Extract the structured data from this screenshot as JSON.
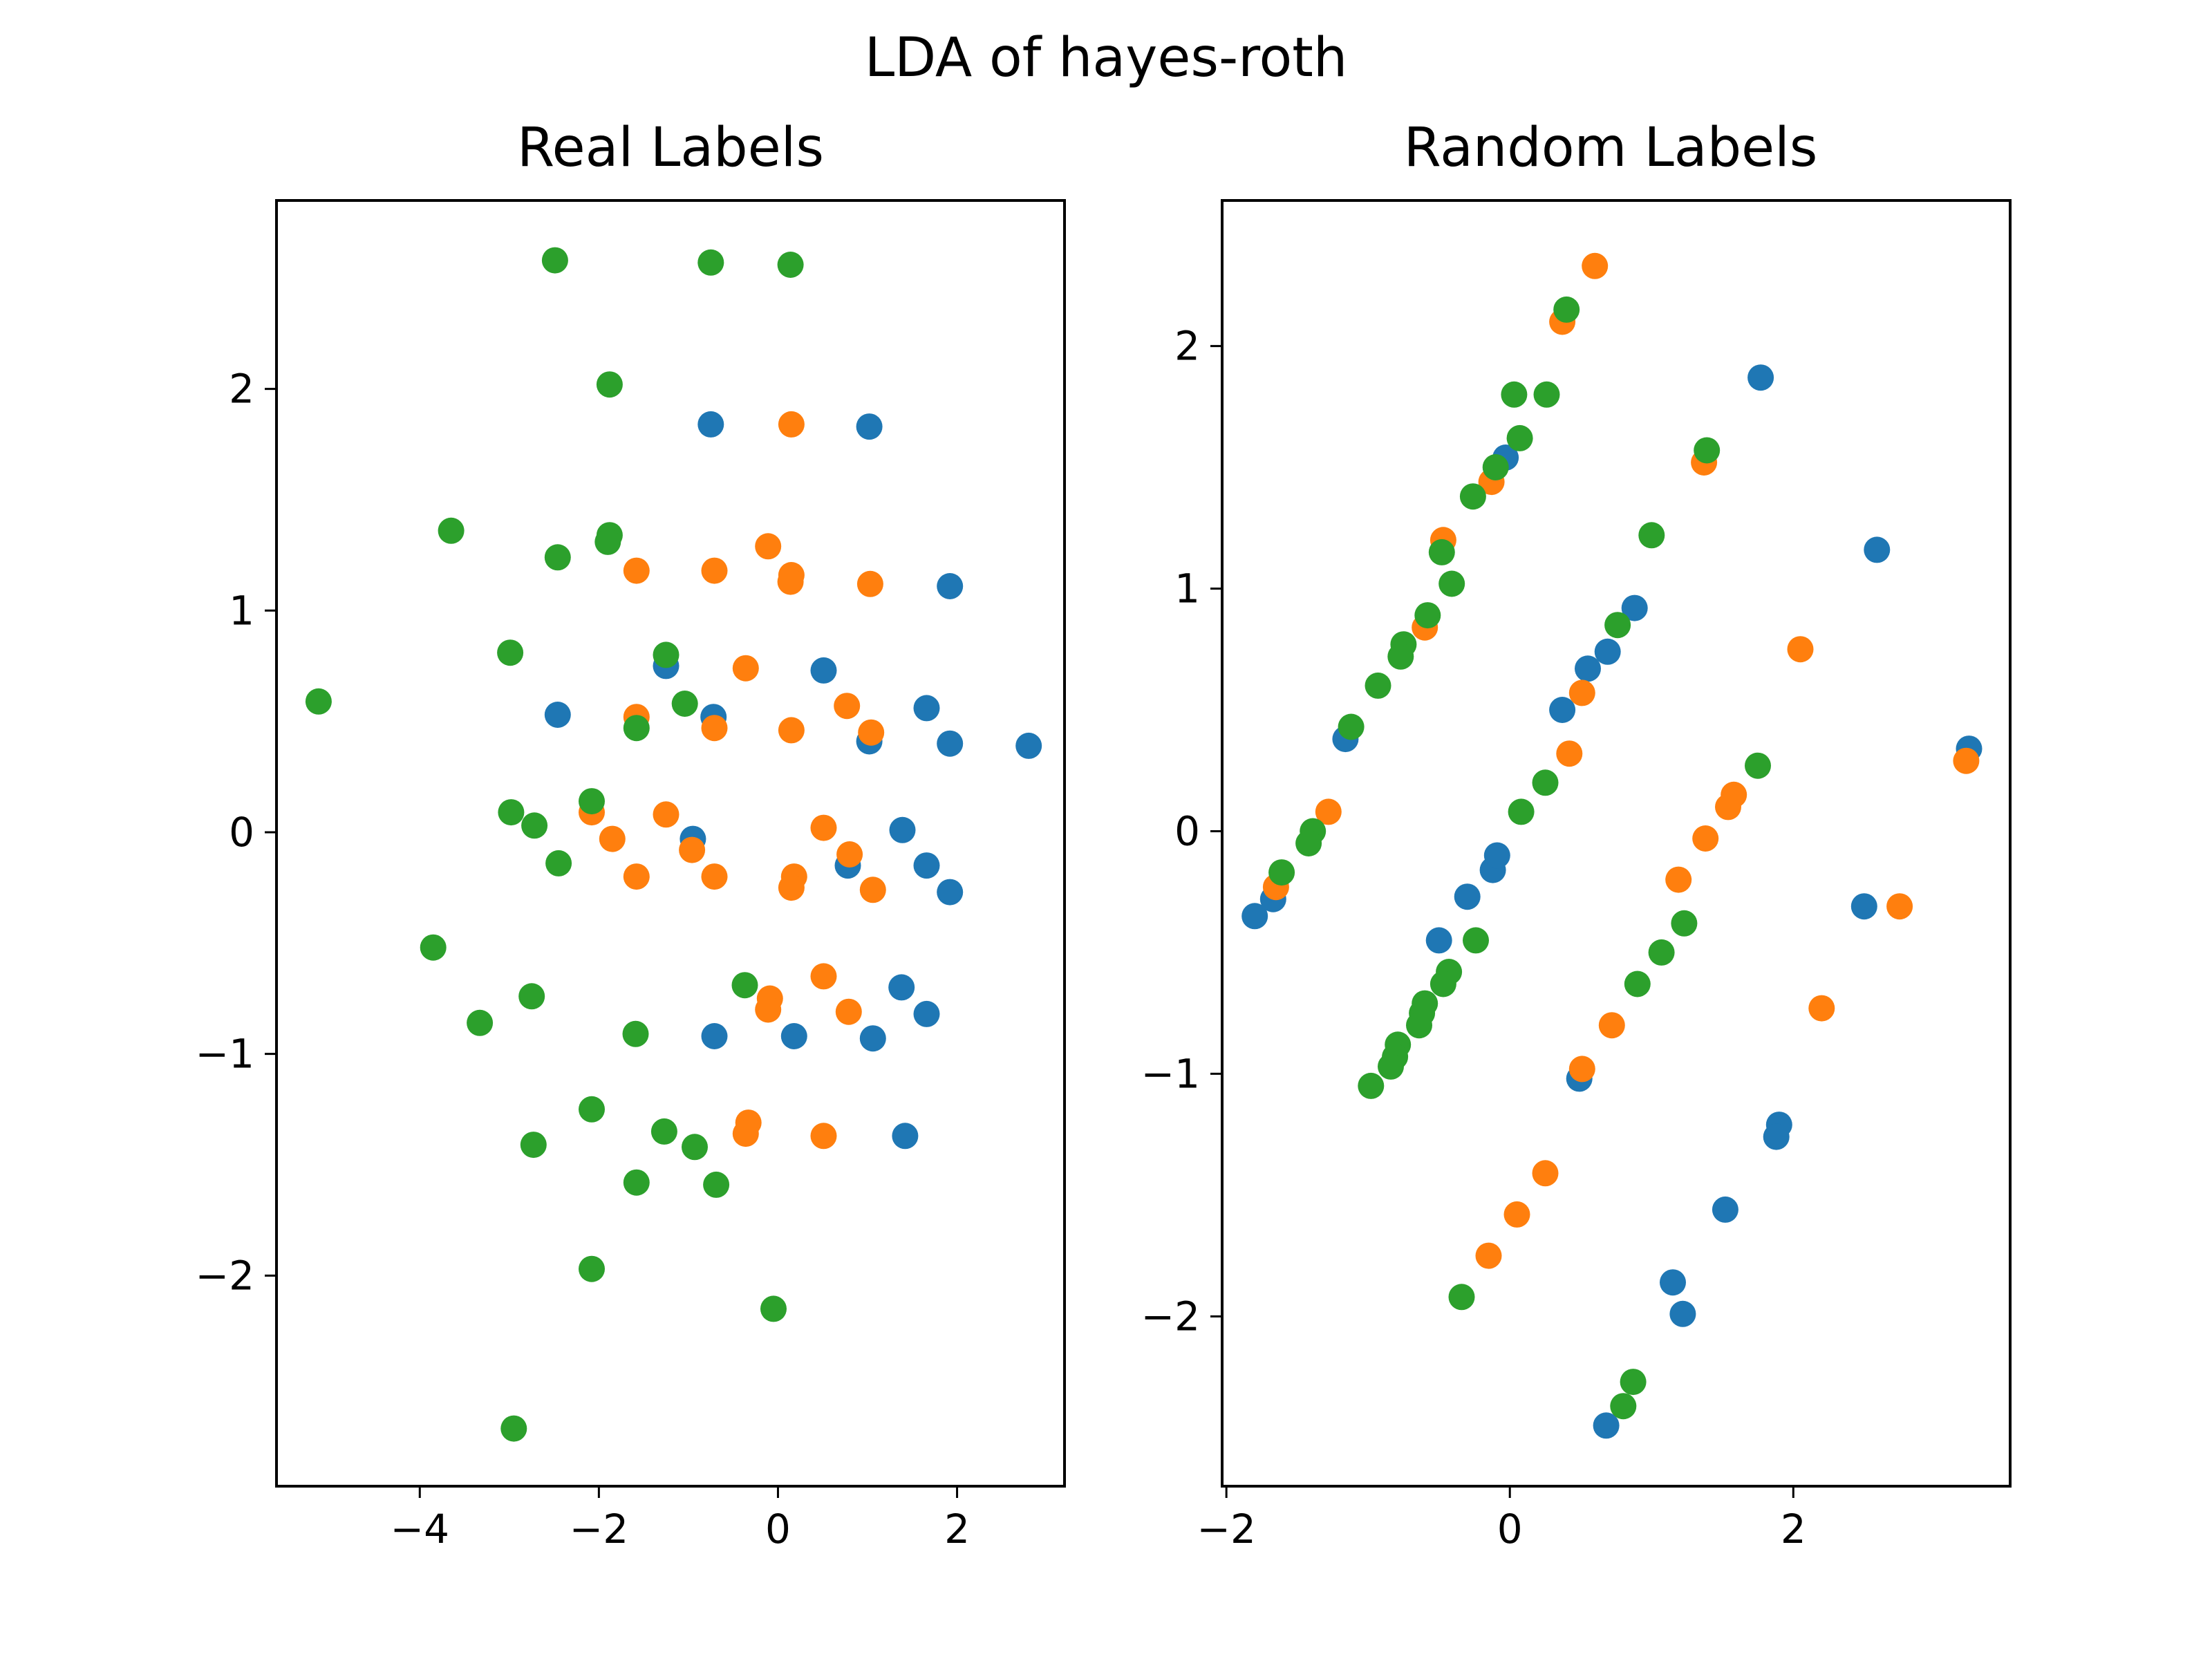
{
  "figure": {
    "suptitle": "LDA of hayes-roth",
    "colors": {
      "class_0": "#1f77b4",
      "class_1": "#ff7f0e",
      "class_2": "#2ca02c"
    }
  },
  "chart_data": [
    {
      "type": "scatter",
      "title": "Real Labels",
      "xlabel": "",
      "ylabel": "",
      "xlim": [
        -5.6,
        3.2
      ],
      "ylim": [
        -2.95,
        2.85
      ],
      "xticks": [
        -4,
        -2,
        0,
        2
      ],
      "yticks": [
        -2,
        -1,
        0,
        1,
        2
      ],
      "xtick_labels": [
        "−4",
        "−2",
        "0",
        "2"
      ],
      "ytick_labels": [
        "−2",
        "−1",
        "0",
        "1",
        "2"
      ],
      "grid": false,
      "series": [
        {
          "color": "#1f77b4",
          "points": [
            [
              -0.75,
              1.84
            ],
            [
              1.02,
              1.83
            ],
            [
              1.92,
              1.11
            ],
            [
              -2.46,
              0.53
            ],
            [
              -1.25,
              0.75
            ],
            [
              0.51,
              0.73
            ],
            [
              1.66,
              0.56
            ],
            [
              -0.72,
              0.52
            ],
            [
              1.02,
              0.41
            ],
            [
              1.92,
              0.4
            ],
            [
              2.8,
              0.39
            ],
            [
              -0.95,
              -0.03
            ],
            [
              1.39,
              0.01
            ],
            [
              0.78,
              -0.15
            ],
            [
              1.66,
              -0.15
            ],
            [
              1.92,
              -0.27
            ],
            [
              1.38,
              -0.7
            ],
            [
              1.66,
              -0.82
            ],
            [
              -0.71,
              -0.92
            ],
            [
              0.18,
              -0.92
            ],
            [
              1.06,
              -0.93
            ],
            [
              1.42,
              -1.37
            ]
          ]
        },
        {
          "color": "#ff7f0e",
          "points": [
            [
              0.15,
              1.84
            ],
            [
              -1.58,
              1.18
            ],
            [
              -0.71,
              1.18
            ],
            [
              -0.11,
              1.29
            ],
            [
              0.15,
              1.16
            ],
            [
              0.14,
              1.13
            ],
            [
              1.03,
              1.12
            ],
            [
              -0.36,
              0.74
            ],
            [
              -1.58,
              0.52
            ],
            [
              -0.71,
              0.47
            ],
            [
              0.15,
              0.46
            ],
            [
              0.77,
              0.57
            ],
            [
              1.04,
              0.45
            ],
            [
              -2.08,
              0.09
            ],
            [
              -1.25,
              0.08
            ],
            [
              -1.85,
              -0.03
            ],
            [
              -0.96,
              -0.08
            ],
            [
              0.51,
              0.02
            ],
            [
              -1.58,
              -0.2
            ],
            [
              -0.71,
              -0.2
            ],
            [
              0.18,
              -0.2
            ],
            [
              0.15,
              -0.25
            ],
            [
              0.8,
              -0.1
            ],
            [
              1.06,
              -0.26
            ],
            [
              0.51,
              -0.65
            ],
            [
              -0.09,
              -0.75
            ],
            [
              -0.11,
              -0.8
            ],
            [
              0.79,
              -0.81
            ],
            [
              -0.33,
              -1.31
            ],
            [
              -0.36,
              -1.36
            ],
            [
              0.51,
              -1.37
            ]
          ]
        },
        {
          "color": "#2ca02c",
          "points": [
            [
              -2.49,
              2.58
            ],
            [
              -0.75,
              2.57
            ],
            [
              0.14,
              2.56
            ],
            [
              -1.88,
              2.02
            ],
            [
              -3.65,
              1.36
            ],
            [
              -1.88,
              1.34
            ],
            [
              -1.9,
              1.31
            ],
            [
              -2.46,
              1.24
            ],
            [
              -2.99,
              0.81
            ],
            [
              -1.25,
              0.8
            ],
            [
              -5.13,
              0.59
            ],
            [
              -1.04,
              0.58
            ],
            [
              -1.58,
              0.47
            ],
            [
              -2.08,
              0.14
            ],
            [
              -2.98,
              0.09
            ],
            [
              -2.72,
              0.03
            ],
            [
              -2.45,
              -0.14
            ],
            [
              -3.85,
              -0.52
            ],
            [
              -0.37,
              -0.69
            ],
            [
              -2.75,
              -0.74
            ],
            [
              -3.33,
              -0.86
            ],
            [
              -1.59,
              -0.91
            ],
            [
              -2.08,
              -1.25
            ],
            [
              -1.27,
              -1.35
            ],
            [
              -0.93,
              -1.42
            ],
            [
              -2.73,
              -1.41
            ],
            [
              -1.58,
              -1.58
            ],
            [
              -0.69,
              -1.59
            ],
            [
              -2.08,
              -1.97
            ],
            [
              -0.05,
              -2.15
            ],
            [
              -2.95,
              -2.69
            ]
          ]
        }
      ]
    },
    {
      "type": "scatter",
      "title": "Random Labels",
      "xlabel": "",
      "ylabel": "",
      "xlim": [
        -2.03,
        3.53
      ],
      "ylim": [
        -2.7,
        2.6
      ],
      "xticks": [
        -2,
        0,
        2
      ],
      "yticks": [
        -2,
        -1,
        0,
        1,
        2
      ],
      "xtick_labels": [
        "−2",
        "0",
        "2"
      ],
      "ytick_labels": [
        "−2",
        "−1",
        "0",
        "1",
        "2"
      ],
      "grid": false,
      "series": [
        {
          "color": "#1f77b4",
          "points": [
            [
              -1.8,
              -0.35
            ],
            [
              -1.67,
              -0.28
            ],
            [
              -1.16,
              0.38
            ],
            [
              -0.03,
              1.54
            ],
            [
              0.37,
              0.5
            ],
            [
              0.55,
              0.67
            ],
            [
              0.69,
              0.74
            ],
            [
              0.88,
              0.92
            ],
            [
              1.77,
              1.87
            ],
            [
              2.59,
              1.16
            ],
            [
              3.24,
              0.34
            ],
            [
              2.5,
              -0.31
            ],
            [
              -0.5,
              -0.45
            ],
            [
              -0.3,
              -0.27
            ],
            [
              -0.12,
              -0.16
            ],
            [
              -0.09,
              -0.1
            ],
            [
              0.49,
              -1.02
            ],
            [
              1.9,
              -1.21
            ],
            [
              1.88,
              -1.26
            ],
            [
              1.52,
              -1.56
            ],
            [
              1.15,
              -1.86
            ],
            [
              1.22,
              -1.99
            ],
            [
              0.68,
              -2.45
            ]
          ]
        },
        {
          "color": "#ff7f0e",
          "points": [
            [
              0.6,
              2.33
            ],
            [
              0.37,
              2.1
            ],
            [
              -0.13,
              1.44
            ],
            [
              -0.47,
              1.2
            ],
            [
              -0.6,
              0.84
            ],
            [
              1.37,
              1.52
            ],
            [
              2.05,
              0.75
            ],
            [
              0.51,
              0.57
            ],
            [
              0.42,
              0.32
            ],
            [
              -1.28,
              0.08
            ],
            [
              -1.65,
              -0.23
            ],
            [
              1.58,
              0.15
            ],
            [
              1.54,
              0.1
            ],
            [
              1.38,
              -0.03
            ],
            [
              1.19,
              -0.2
            ],
            [
              2.75,
              -0.31
            ],
            [
              2.2,
              -0.73
            ],
            [
              3.22,
              0.29
            ],
            [
              0.72,
              -0.8
            ],
            [
              0.51,
              -0.98
            ],
            [
              0.25,
              -1.41
            ],
            [
              0.05,
              -1.58
            ],
            [
              -0.15,
              -1.75
            ]
          ]
        },
        {
          "color": "#2ca02c",
          "points": [
            [
              0.4,
              2.15
            ],
            [
              0.03,
              1.8
            ],
            [
              0.26,
              1.8
            ],
            [
              0.07,
              1.62
            ],
            [
              -0.1,
              1.5
            ],
            [
              -0.26,
              1.38
            ],
            [
              -0.48,
              1.15
            ],
            [
              -0.41,
              1.02
            ],
            [
              -0.58,
              0.89
            ],
            [
              -0.75,
              0.77
            ],
            [
              -0.77,
              0.72
            ],
            [
              -0.93,
              0.6
            ],
            [
              -1.12,
              0.43
            ],
            [
              -1.39,
              0.0
            ],
            [
              -1.42,
              -0.05
            ],
            [
              -1.61,
              -0.17
            ],
            [
              0.08,
              0.08
            ],
            [
              0.25,
              0.2
            ],
            [
              0.76,
              0.85
            ],
            [
              1.0,
              1.22
            ],
            [
              1.39,
              1.57
            ],
            [
              1.75,
              0.27
            ],
            [
              -0.24,
              -0.45
            ],
            [
              -0.43,
              -0.58
            ],
            [
              -0.47,
              -0.63
            ],
            [
              -0.6,
              -0.71
            ],
            [
              -0.62,
              -0.75
            ],
            [
              -0.64,
              -0.8
            ],
            [
              -0.79,
              -0.88
            ],
            [
              -0.81,
              -0.93
            ],
            [
              -0.84,
              -0.97
            ],
            [
              -0.98,
              -1.05
            ],
            [
              1.23,
              -0.38
            ],
            [
              1.07,
              -0.5
            ],
            [
              0.9,
              -0.63
            ],
            [
              -0.34,
              -1.92
            ],
            [
              0.87,
              -2.27
            ],
            [
              0.8,
              -2.37
            ]
          ]
        }
      ]
    }
  ]
}
